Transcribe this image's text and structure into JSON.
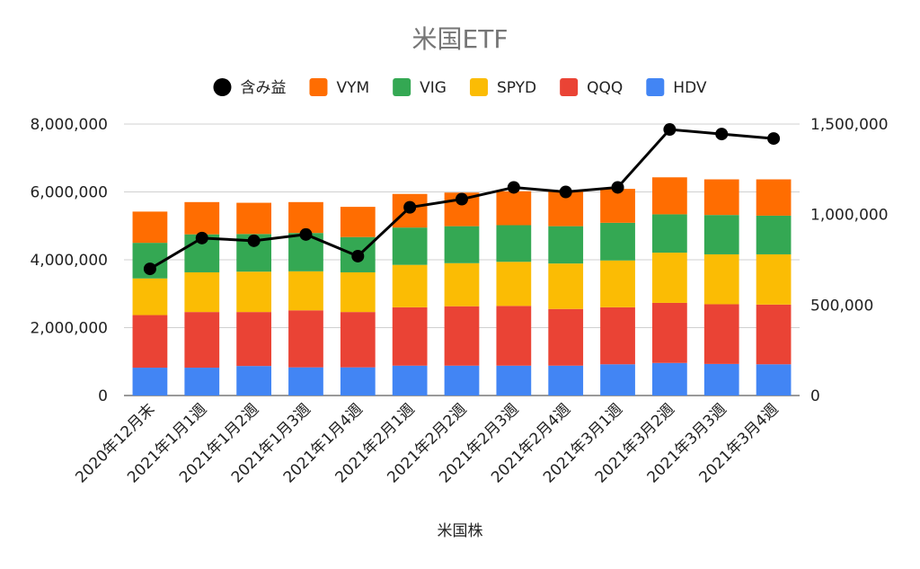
{
  "chart_data": {
    "type": "bar",
    "stacked": true,
    "title": "米国ETF",
    "xlabel": "米国株",
    "ylabel": "",
    "ylim": [
      0,
      8000000
    ],
    "y2lim": [
      0,
      1500000
    ],
    "yticks": [
      "0",
      "2,000,000",
      "4,000,000",
      "6,000,000",
      "8,000,000"
    ],
    "y2ticks": [
      "0",
      "500,000",
      "1,000,000",
      "1,500,000"
    ],
    "grid": true,
    "legend_position": "top",
    "categories": [
      "2020年12月末",
      "2021年1月1週",
      "2021年1月2週",
      "2021年1月3週",
      "2021年1月4週",
      "2021年2月1週",
      "2021年2月2週",
      "2021年2月3週",
      "2021年2月4週",
      "2021年3月1週",
      "2021年3月2週",
      "2021年3月3週",
      "2021年3月4週"
    ],
    "series": [
      {
        "name": "HDV",
        "color": "#4285f4",
        "values": [
          820000,
          820000,
          870000,
          830000,
          830000,
          880000,
          880000,
          880000,
          880000,
          920000,
          960000,
          930000,
          920000
        ]
      },
      {
        "name": "QQQ",
        "color": "#ea4335",
        "values": [
          1550000,
          1640000,
          1590000,
          1680000,
          1630000,
          1720000,
          1750000,
          1760000,
          1670000,
          1680000,
          1770000,
          1760000,
          1760000
        ]
      },
      {
        "name": "SPYD",
        "color": "#fbbc04",
        "values": [
          1080000,
          1170000,
          1190000,
          1150000,
          1170000,
          1250000,
          1270000,
          1300000,
          1340000,
          1380000,
          1480000,
          1470000,
          1480000
        ]
      },
      {
        "name": "VIG",
        "color": "#34a853",
        "values": [
          1050000,
          1120000,
          1110000,
          1130000,
          1040000,
          1100000,
          1090000,
          1080000,
          1100000,
          1110000,
          1130000,
          1160000,
          1140000
        ]
      },
      {
        "name": "VYM",
        "color": "#ff6d01",
        "values": [
          920000,
          950000,
          920000,
          910000,
          890000,
          990000,
          990000,
          1000000,
          1020000,
          1000000,
          1090000,
          1050000,
          1070000
        ]
      }
    ],
    "line_series": {
      "name": "含み益",
      "color": "#000000",
      "axis": "right",
      "values": [
        700000,
        870000,
        855000,
        890000,
        770000,
        1040000,
        1085000,
        1150000,
        1125000,
        1150000,
        1470000,
        1445000,
        1420000
      ]
    },
    "legend_order": [
      "含み益",
      "VYM",
      "VIG",
      "SPYD",
      "QQQ",
      "HDV"
    ]
  }
}
